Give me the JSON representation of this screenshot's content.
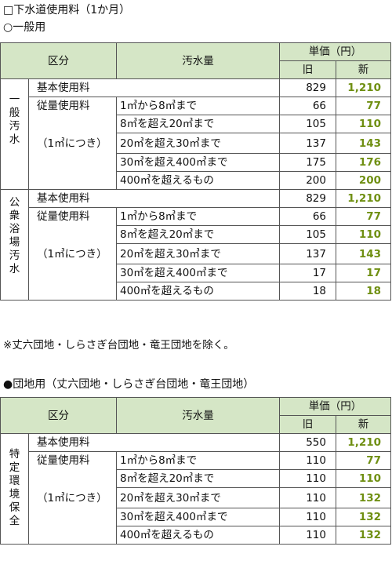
{
  "title": "□下水道使用料（1か月）",
  "section1": {
    "heading": "○一般用",
    "header": {
      "kubun": "区分",
      "osuiryo": "汚水量",
      "tanka": "単価（円）",
      "old": "旧",
      "new": "新"
    },
    "groups": [
      {
        "category": [
          "一",
          "般",
          "汚",
          "水"
        ],
        "basic_label": "基本使用料",
        "basic_old": "829",
        "basic_new": "1,210",
        "meter_label": "従量使用料",
        "per_label": "（1㎥につき）",
        "rows": [
          {
            "range": "1㎥から8㎥まで",
            "old": "66",
            "new": "77"
          },
          {
            "range": "8㎥を超え20㎥まで",
            "old": "105",
            "new": "110"
          },
          {
            "range": "20㎥を超え30㎥まで",
            "old": "137",
            "new": "143"
          },
          {
            "range": "30㎥を超え400㎥まで",
            "old": "175",
            "new": "176"
          },
          {
            "range": "400㎥を超えるもの",
            "old": "200",
            "new": "200"
          }
        ]
      },
      {
        "category": [
          "公",
          "衆",
          "浴",
          "場",
          "汚",
          "水"
        ],
        "basic_label": "基本使用料",
        "basic_old": "829",
        "basic_new": "1,210",
        "meter_label": "従量使用料",
        "per_label": "（1㎥につき）",
        "rows": [
          {
            "range": "1㎥から8㎥まで",
            "old": "66",
            "new": "77"
          },
          {
            "range": "8㎥を超え20㎥まで",
            "old": "105",
            "new": "110"
          },
          {
            "range": "20㎥を超え30㎥まで",
            "old": "137",
            "new": "143"
          },
          {
            "range": "30㎥を超え400㎥まで",
            "old": "17",
            "new": "17"
          },
          {
            "range": "400㎥を超えるもの",
            "old": "18",
            "new": "18"
          }
        ]
      }
    ],
    "note": "※丈六団地・しらさぎ台団地・竜王団地を除く。"
  },
  "section2": {
    "heading": "●団地用（丈六団地・しらさぎ台団地・竜王団地）",
    "header": {
      "kubun": "区分",
      "osuiryo": "汚水量",
      "tanka": "単価（円）",
      "old": "旧",
      "new": "新"
    },
    "group": {
      "category": [
        "特",
        "定",
        "環",
        "境",
        "保",
        "全"
      ],
      "basic_label": "基本使用料",
      "basic_old": "550",
      "basic_new": "1,210",
      "meter_label": "従量使用料",
      "per_label": "（1㎥につき）",
      "rows": [
        {
          "range": "1㎥から8㎥まで",
          "old": "110",
          "new": "77"
        },
        {
          "range": "8㎥を超え20㎥まで",
          "old": "110",
          "new": "110"
        },
        {
          "range": "20㎥を超え30㎥まで",
          "old": "110",
          "new": "132"
        },
        {
          "range": "30㎥を超え400㎥まで",
          "old": "110",
          "new": "132"
        },
        {
          "range": "400㎥を超えるもの",
          "old": "110",
          "new": "132"
        }
      ]
    }
  },
  "colors": {
    "header_bg": "#d5e6c6",
    "new_value": "#6f8f12"
  }
}
